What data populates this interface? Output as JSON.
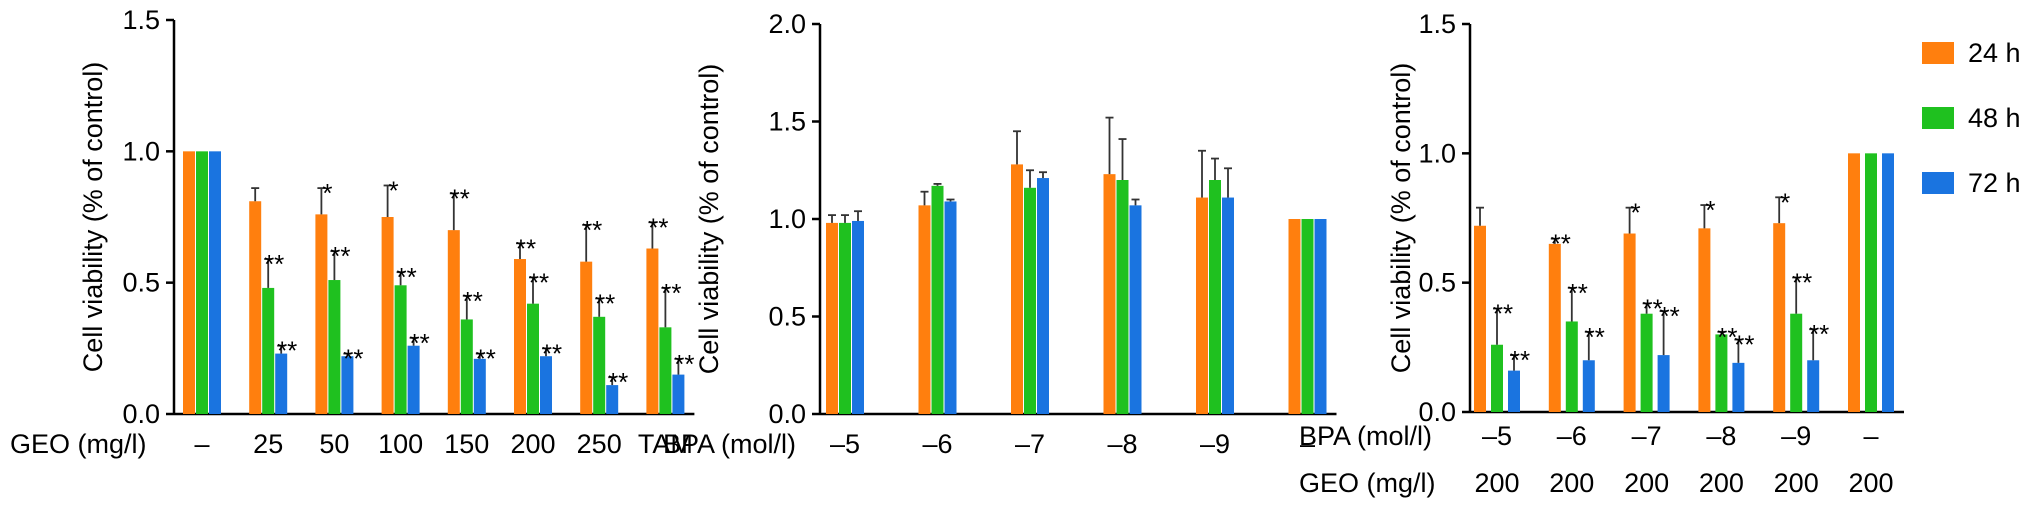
{
  "colors": {
    "24h": "#FF7F0E",
    "48h": "#1FC11F",
    "72h": "#1A74E0"
  },
  "legend": [
    {
      "label": "24 h",
      "color_key": "24h"
    },
    {
      "label": "48 h",
      "color_key": "48h"
    },
    {
      "label": "72 h",
      "color_key": "72h"
    }
  ],
  "chart_data": [
    {
      "type": "bar",
      "ylabel": "Cell viability (% of control)",
      "ylim": [
        0,
        1.5
      ],
      "yticks": [
        "0.0",
        "0.5",
        "1.0",
        "1.5"
      ],
      "row_labels": [
        "GEO (mg/l)"
      ],
      "categories": [
        [
          "–"
        ],
        [
          "25"
        ],
        [
          "50"
        ],
        [
          "100"
        ],
        [
          "150"
        ],
        [
          "200"
        ],
        [
          "250"
        ],
        [
          "TAM"
        ]
      ],
      "series": [
        {
          "name": "24 h",
          "color_key": "24h",
          "values": [
            1.0,
            0.81,
            0.76,
            0.75,
            0.7,
            0.59,
            0.58,
            0.63
          ],
          "errors": [
            0,
            0.05,
            0.1,
            0.12,
            0.14,
            0.06,
            0.14,
            0.1
          ],
          "sig": [
            "",
            "",
            "*",
            "*",
            "**",
            "**",
            "**",
            "**"
          ]
        },
        {
          "name": "48 h",
          "color_key": "48h",
          "values": [
            1.0,
            0.48,
            0.51,
            0.49,
            0.36,
            0.42,
            0.37,
            0.33
          ],
          "errors": [
            0,
            0.11,
            0.11,
            0.05,
            0.09,
            0.1,
            0.07,
            0.15
          ],
          "sig": [
            "",
            "**",
            "**",
            "**",
            "**",
            "**",
            "**",
            "**"
          ]
        },
        {
          "name": "72 h",
          "color_key": "72h",
          "values": [
            1.0,
            0.23,
            0.22,
            0.26,
            0.21,
            0.22,
            0.11,
            0.15
          ],
          "errors": [
            0,
            0.03,
            0.01,
            0.03,
            0.02,
            0.03,
            0.03,
            0.06
          ],
          "sig": [
            "",
            "**",
            "**",
            "**",
            "**",
            "**",
            "**",
            "**"
          ]
        }
      ]
    },
    {
      "type": "bar",
      "ylabel": "Cell viability (% of control)",
      "ylim": [
        0,
        2.0
      ],
      "yticks": [
        "0.0",
        "0.5",
        "1.0",
        "1.5",
        "2.0"
      ],
      "row_labels": [
        "BPA (mol/l)"
      ],
      "categories": [
        [
          "–5"
        ],
        [
          "–6"
        ],
        [
          "–7"
        ],
        [
          "–8"
        ],
        [
          "–9"
        ],
        [
          "–"
        ]
      ],
      "series": [
        {
          "name": "24 h",
          "color_key": "24h",
          "values": [
            0.98,
            1.07,
            1.28,
            1.23,
            1.11,
            1.0
          ],
          "errors": [
            0.04,
            0.07,
            0.17,
            0.29,
            0.24,
            0
          ],
          "sig": [
            "",
            "",
            "",
            "",
            "",
            ""
          ]
        },
        {
          "name": "48 h",
          "color_key": "48h",
          "values": [
            0.98,
            1.17,
            1.16,
            1.2,
            1.2,
            1.0
          ],
          "errors": [
            0.04,
            0.01,
            0.09,
            0.21,
            0.11,
            0
          ],
          "sig": [
            "",
            "",
            "",
            "",
            "",
            ""
          ]
        },
        {
          "name": "72 h",
          "color_key": "72h",
          "values": [
            0.99,
            1.09,
            1.21,
            1.07,
            1.11,
            1.0
          ],
          "errors": [
            0.05,
            0.01,
            0.03,
            0.03,
            0.15,
            0
          ],
          "sig": [
            "",
            "",
            "",
            "",
            "",
            ""
          ]
        }
      ]
    },
    {
      "type": "bar",
      "ylabel": "Cell viability (% of control)",
      "ylim": [
        0,
        1.5
      ],
      "yticks": [
        "0.0",
        "0.5",
        "1.0",
        "1.5"
      ],
      "row_labels": [
        "BPA (mol/l)",
        "GEO (mg/l)"
      ],
      "categories": [
        [
          "–5",
          "200"
        ],
        [
          "–6",
          "200"
        ],
        [
          "–7",
          "200"
        ],
        [
          "–8",
          "200"
        ],
        [
          "–9",
          "200"
        ],
        [
          "–",
          "200"
        ]
      ],
      "series": [
        {
          "name": "24 h",
          "color_key": "24h",
          "values": [
            0.72,
            0.65,
            0.69,
            0.71,
            0.73,
            1.0
          ],
          "errors": [
            0.07,
            0.02,
            0.1,
            0.09,
            0.1,
            0
          ],
          "sig": [
            "",
            "**",
            "*",
            "*",
            "*",
            ""
          ]
        },
        {
          "name": "48 h",
          "color_key": "48h",
          "values": [
            0.26,
            0.35,
            0.38,
            0.3,
            0.38,
            1.0
          ],
          "errors": [
            0.14,
            0.13,
            0.04,
            0.01,
            0.14,
            0
          ],
          "sig": [
            "**",
            "**",
            "**",
            "**",
            "**",
            ""
          ]
        },
        {
          "name": "72 h",
          "color_key": "72h",
          "values": [
            0.16,
            0.2,
            0.22,
            0.19,
            0.2,
            1.0
          ],
          "errors": [
            0.06,
            0.11,
            0.17,
            0.09,
            0.12,
            0
          ],
          "sig": [
            "**",
            "**",
            "**",
            "**",
            "**",
            ""
          ]
        }
      ]
    }
  ]
}
